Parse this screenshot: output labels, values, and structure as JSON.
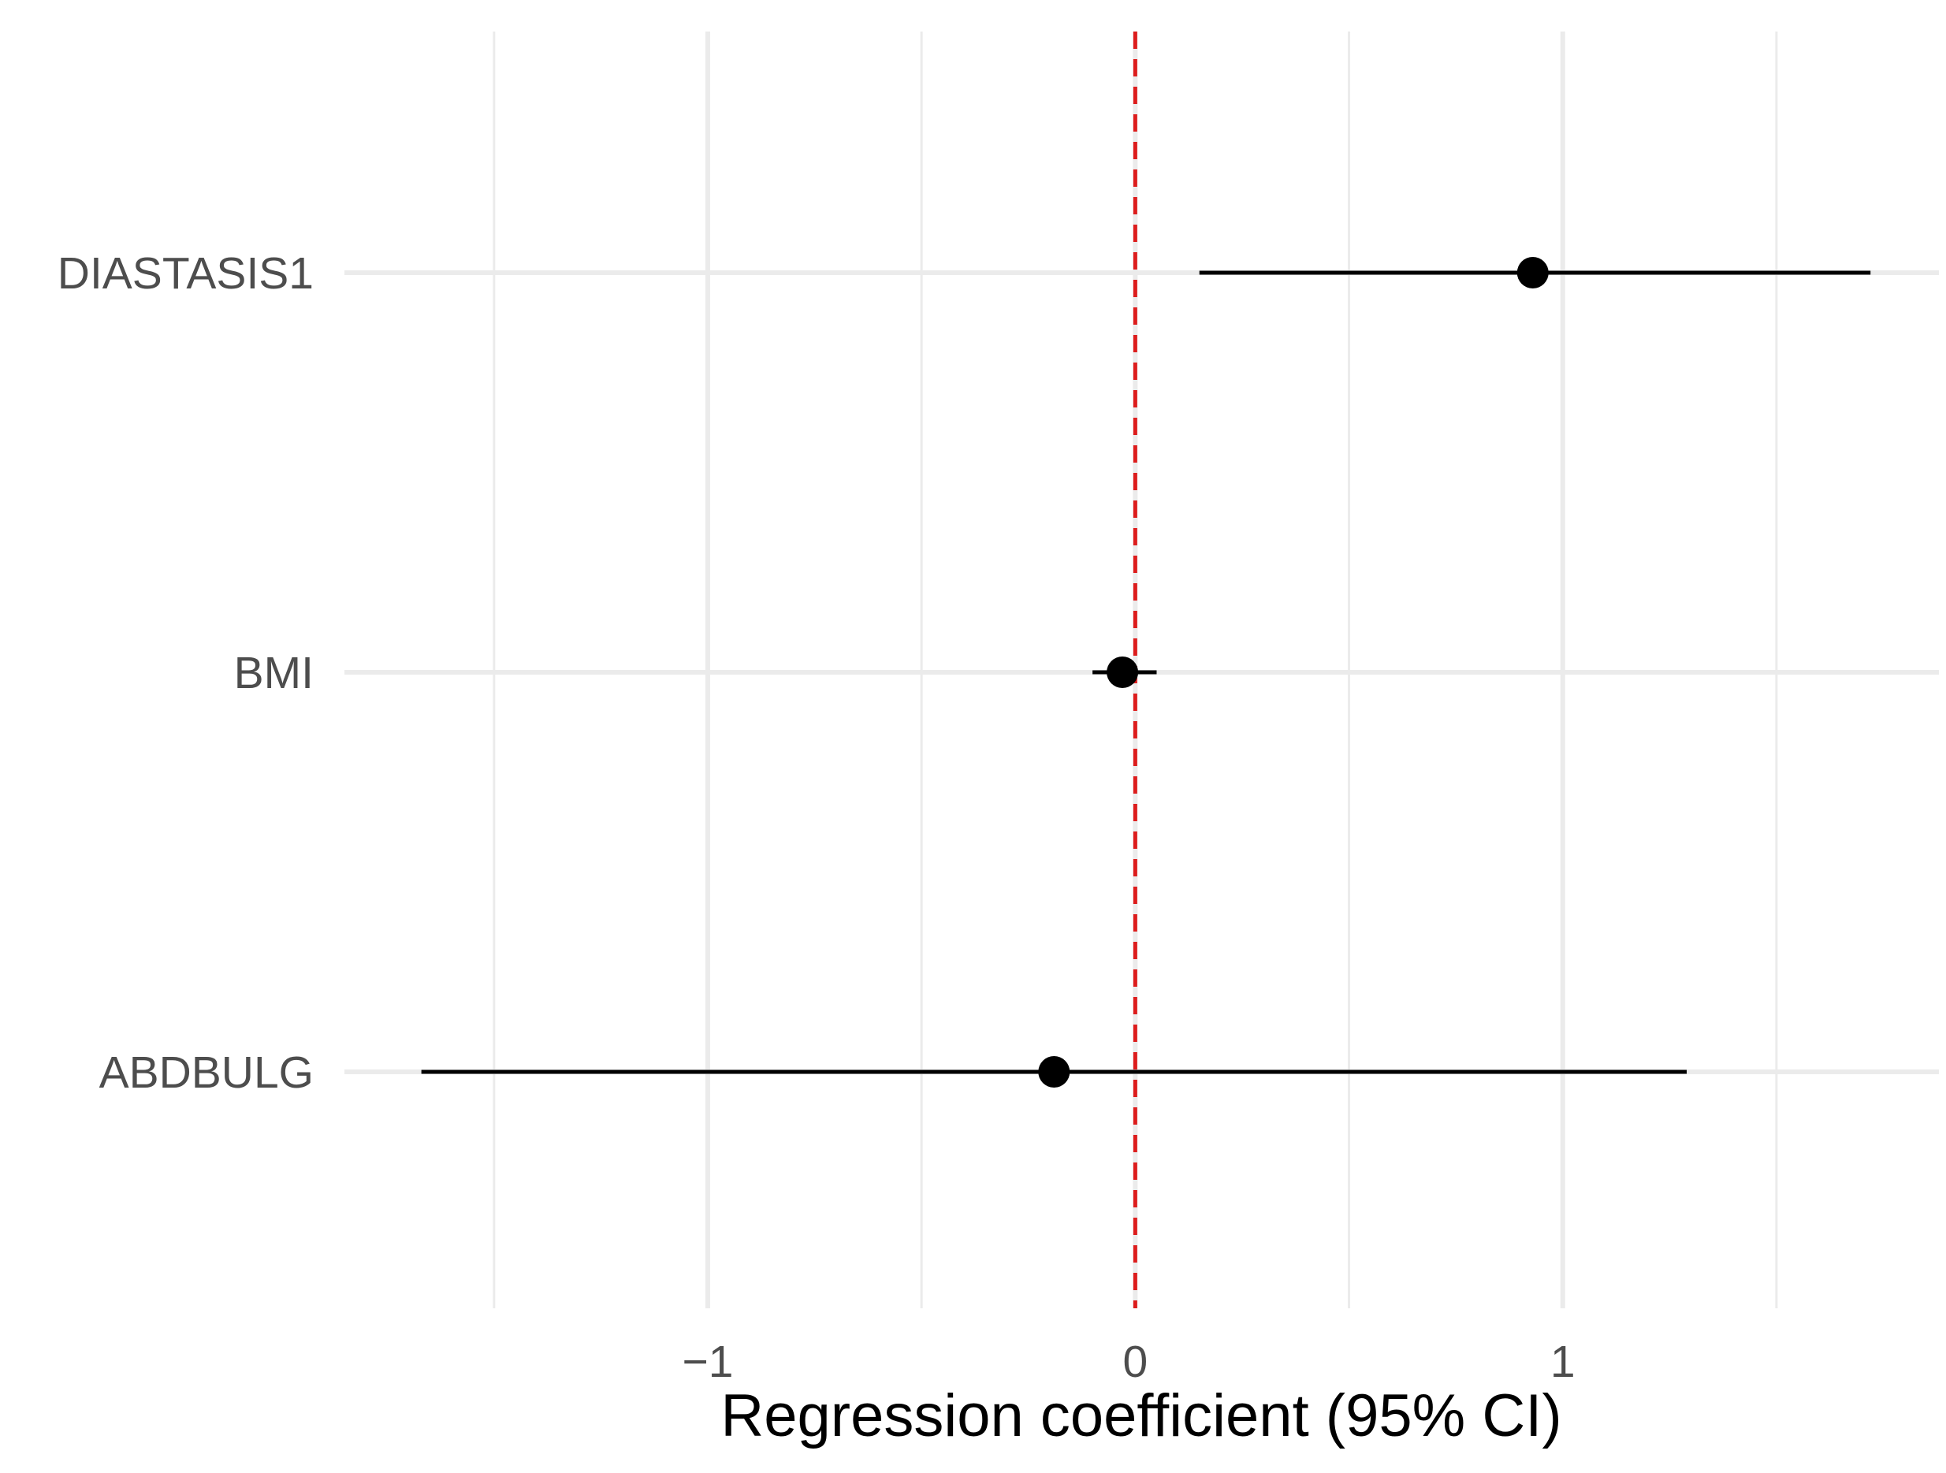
{
  "chart_data": {
    "type": "forest",
    "title": "",
    "xlabel": "Regression coefficient (95% CI)",
    "ylabel": "",
    "xlim": [
      -1.85,
      1.88
    ],
    "x_ticks": [
      -1,
      0,
      1
    ],
    "x_tick_labels": [
      "−1",
      "0",
      "1"
    ],
    "x_minor_gridlines": [
      -1.5,
      -0.5,
      0.5,
      1.5
    ],
    "reference_line": {
      "x": 0,
      "style": "dashed",
      "color": "#dd1c1c"
    },
    "grid": true,
    "point_color": "#000000",
    "categories": [
      "DIASTASIS1",
      "BMI",
      "ABDBULG"
    ],
    "estimates": [
      {
        "term": "DIASTASIS1",
        "estimate": 0.93,
        "ci_low": 0.15,
        "ci_high": 1.72
      },
      {
        "term": "BMI",
        "estimate": -0.03,
        "ci_low": -0.1,
        "ci_high": 0.05
      },
      {
        "term": "ABDBULG",
        "estimate": -0.19,
        "ci_low": -1.67,
        "ci_high": 1.29
      }
    ]
  }
}
